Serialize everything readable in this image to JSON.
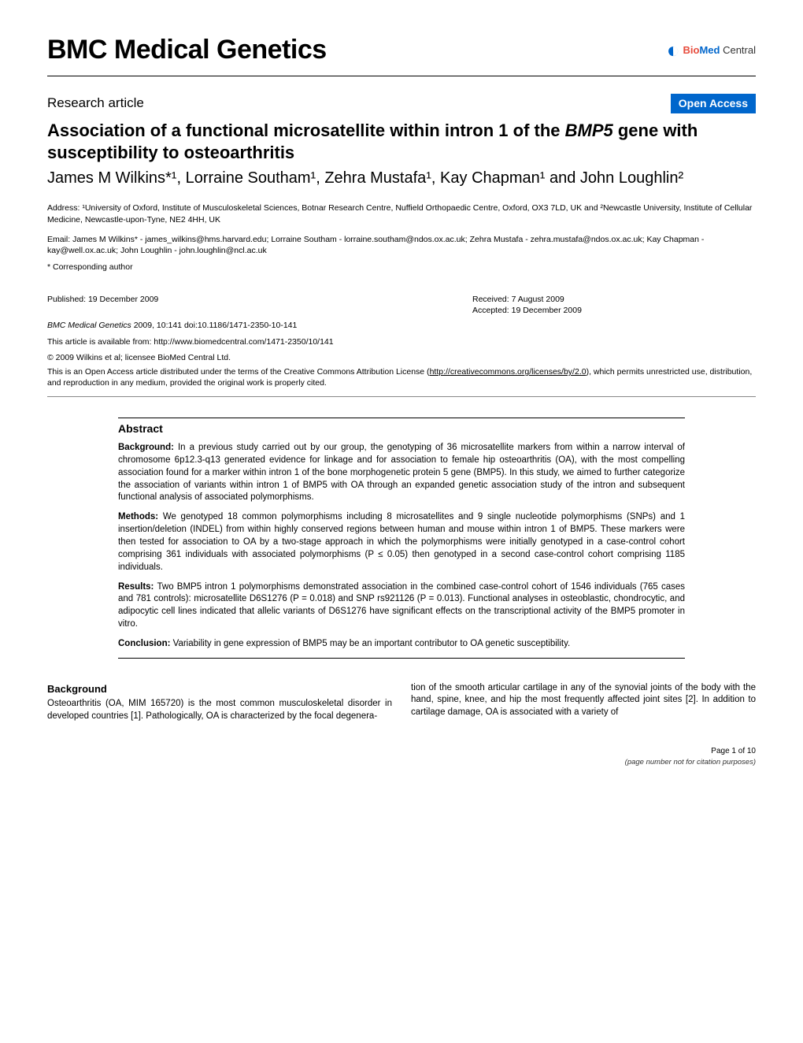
{
  "journal": {
    "name": "BMC Medical Genetics",
    "publisher_logo": {
      "bio": "Bio",
      "med": "Med",
      "central": " Central"
    }
  },
  "article": {
    "type": "Research article",
    "badge": "Open Access",
    "title_pre": "Association of a functional microsatellite within intron 1 of the ",
    "title_gene": "BMP5",
    "title_post": " gene with susceptibility to osteoarthritis",
    "authors": "James M Wilkins*¹, Lorraine Southam¹, Zehra Mustafa¹, Kay Chapman¹ and John Loughlin²",
    "affiliations": "Address: ¹University of Oxford, Institute of Musculoskeletal Sciences, Botnar Research Centre, Nuffield Orthopaedic Centre, Oxford, OX3 7LD, UK and ²Newcastle University, Institute of Cellular Medicine, Newcastle-upon-Tyne, NE2 4HH, UK",
    "emails": "Email: James M Wilkins* - james_wilkins@hms.harvard.edu; Lorraine Southam - lorraine.southam@ndos.ox.ac.uk; Zehra Mustafa - zehra.mustafa@ndos.ox.ac.uk; Kay Chapman - kay@well.ox.ac.uk; John Loughlin - john.loughlin@ncl.ac.uk",
    "corresponding": "* Corresponding author",
    "published": "Published: 19 December 2009",
    "received": "Received: 7 August 2009",
    "accepted": "Accepted: 19 December 2009",
    "citation_journal": "BMC Medical Genetics",
    "citation_rest": " 2009, 10:141    doi:10.1186/1471-2350-10-141",
    "available": "This article is available from: http://www.biomedcentral.com/1471-2350/10/141",
    "copyright": "© 2009 Wilkins et al; licensee BioMed Central Ltd.",
    "license_pre": "This is an Open Access article distributed under the terms of the Creative Commons Attribution License (",
    "license_url": "http://creativecommons.org/licenses/by/2.0",
    "license_post": "), which permits unrestricted use, distribution, and reproduction in any medium, provided the original work is properly cited."
  },
  "abstract": {
    "heading": "Abstract",
    "background": "In a previous study carried out by our group, the genotyping of 36 microsatellite markers from within a narrow interval of chromosome 6p12.3-q13 generated evidence for linkage and for association to female hip osteoarthritis (OA), with the most compelling association found for a marker within intron 1 of the bone morphogenetic protein 5 gene (BMP5). In this study, we aimed to further categorize the association of variants within intron 1 of BMP5 with OA through an expanded genetic association study of the intron and subsequent functional analysis of associated polymorphisms.",
    "methods": "We genotyped 18 common polymorphisms including 8 microsatellites and 9 single nucleotide polymorphisms (SNPs) and 1 insertion/deletion (INDEL) from within highly conserved regions between human and mouse within intron 1 of BMP5. These markers were then tested for association to OA by a two-stage approach in which the polymorphisms were initially genotyped in a case-control cohort comprising 361 individuals with associated polymorphisms (P ≤ 0.05) then genotyped in a second case-control cohort comprising 1185 individuals.",
    "results": "Two BMP5 intron 1 polymorphisms demonstrated association in the combined case-control cohort of 1546 individuals (765 cases and 781 controls): microsatellite D6S1276 (P = 0.018) and SNP rs921126 (P = 0.013). Functional analyses in osteoblastic, chondrocytic, and adipocytic cell lines indicated that allelic variants of D6S1276 have significant effects on the transcriptional activity of the BMP5 promoter in vitro.",
    "conclusion": "Variability in gene expression of BMP5 may be an important contributor to OA genetic susceptibility."
  },
  "body": {
    "heading": "Background",
    "col1": "Osteoarthritis (OA, MIM 165720) is the most common musculoskeletal disorder in developed countries [1]. Pathologically, OA is characterized by the focal degenera-",
    "col2": "tion of the smooth articular cartilage in any of the synovial joints of the body with the hand, spine, knee, and hip the most frequently affected joint sites [2]. In addition to cartilage damage, OA is associated with a variety of"
  },
  "footer": {
    "page": "Page 1 of 10",
    "citation_note": "(page number not for citation purposes)"
  },
  "colors": {
    "badge_bg": "#0066cc",
    "badge_fg": "#ffffff",
    "logo_bio": "#e74c3c",
    "logo_med": "#0066cc"
  }
}
